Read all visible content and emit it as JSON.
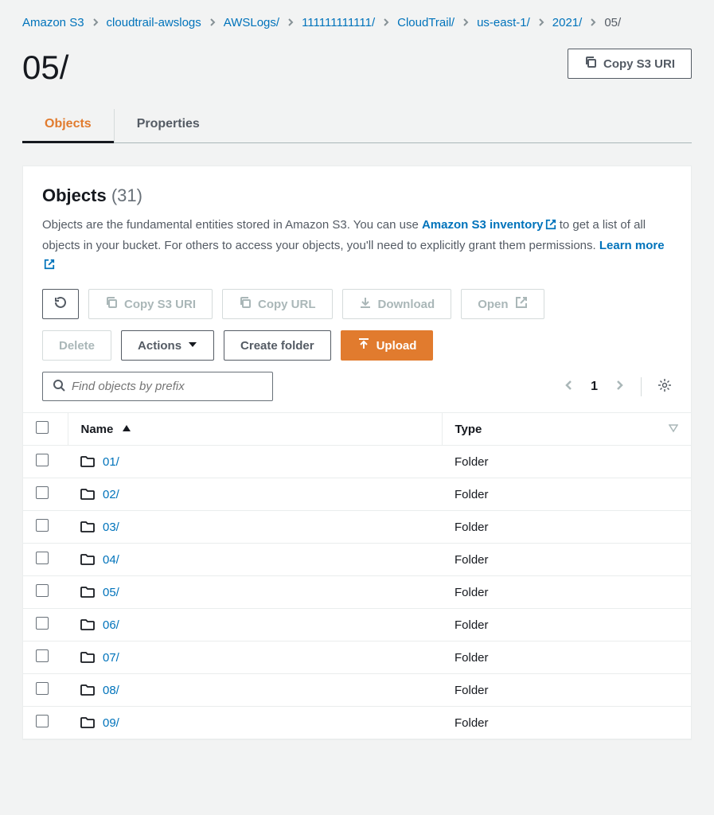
{
  "breadcrumb": [
    {
      "label": "Amazon S3",
      "current": false
    },
    {
      "label": "cloudtrail-awslogs",
      "current": false
    },
    {
      "label": "AWSLogs/",
      "current": false
    },
    {
      "label": "111111111111/",
      "current": false
    },
    {
      "label": "CloudTrail/",
      "current": false
    },
    {
      "label": "us-east-1/",
      "current": false
    },
    {
      "label": "2021/",
      "current": false
    },
    {
      "label": "05/",
      "current": true
    }
  ],
  "page_title": "05/",
  "header_button": "Copy S3 URI",
  "tabs": {
    "objects": "Objects",
    "properties": "Properties"
  },
  "panel": {
    "title": "Objects",
    "count": "(31)",
    "desc_before": "Objects are the fundamental entities stored in Amazon S3. You can use ",
    "inventory_link": "Amazon S3 inventory",
    "desc_middle": " to get a list of all objects in your bucket. For others to access your objects, you'll need to explicitly grant them permissions. ",
    "learn_more": "Learn more"
  },
  "toolbar": {
    "copy_s3_uri": "Copy S3 URI",
    "copy_url": "Copy URL",
    "download": "Download",
    "open": "Open",
    "delete": "Delete",
    "actions": "Actions",
    "create_folder": "Create folder",
    "upload": "Upload"
  },
  "search": {
    "placeholder": "Find objects by prefix"
  },
  "pagination": {
    "page": "1"
  },
  "table": {
    "col_name": "Name",
    "col_type": "Type",
    "rows": [
      {
        "name": "01/",
        "type": "Folder"
      },
      {
        "name": "02/",
        "type": "Folder"
      },
      {
        "name": "03/",
        "type": "Folder"
      },
      {
        "name": "04/",
        "type": "Folder"
      },
      {
        "name": "05/",
        "type": "Folder"
      },
      {
        "name": "06/",
        "type": "Folder"
      },
      {
        "name": "07/",
        "type": "Folder"
      },
      {
        "name": "08/",
        "type": "Folder"
      },
      {
        "name": "09/",
        "type": "Folder"
      }
    ]
  },
  "colors": {
    "link": "#0073bb",
    "accent": "#e17b2e",
    "text": "#16191f",
    "muted": "#545b64",
    "border": "#eaeded",
    "bg": "#f2f3f3"
  }
}
